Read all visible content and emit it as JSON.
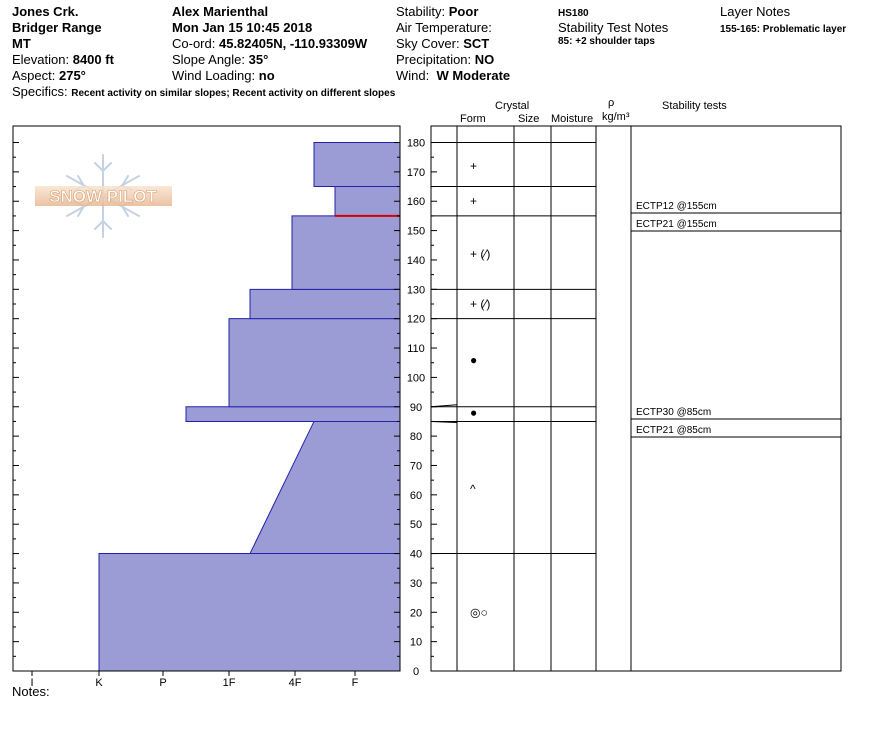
{
  "header": {
    "col1": {
      "location": "Jones Crk.",
      "range": "Bridger Range",
      "state": "MT",
      "elevation_label": "Elevation:",
      "elevation": "8400 ft",
      "aspect_label": "Aspect:",
      "aspect": "275°",
      "specifics_label": "Specifics:",
      "specifics": "Recent activity on similar slopes; Recent activity on different slopes"
    },
    "col2": {
      "observer": "Alex Marienthal",
      "datetime": "Mon Jan 15 10:45 2018",
      "coord_label": "Co-ord:",
      "coord": "45.82405N, -110.93309W",
      "slope_label": "Slope Angle:",
      "slope": "35°",
      "wind_loading_label": "Wind Loading:",
      "wind_loading": "no"
    },
    "col3": {
      "stability_label": "Stability:",
      "stability": "Poor",
      "air_temp_label": "Air Temperature:",
      "sky_label": "Sky Cover:",
      "sky": "SCT",
      "precip_label": "Precipitation:",
      "precip": "NO",
      "wind_label": "Wind:",
      "wind": "W Moderate"
    },
    "col4": {
      "hs": "HS180",
      "stability_notes_title": "Stability Test Notes",
      "stability_notes": "85: +2 shoulder taps"
    },
    "col5": {
      "layer_notes_title": "Layer Notes",
      "layer_notes": "155-165: Problematic layer"
    }
  },
  "logo_text": "SNOW PILOT",
  "notes_label": "Notes:",
  "table_headers": {
    "crystal": "Crystal",
    "form": "Form",
    "size": "Size",
    "moisture": "Moisture",
    "rho": "ρ",
    "density_unit": "kg/m³",
    "stability_tests": "Stability tests"
  },
  "colors": {
    "hardness_fill": "#9b9bd6",
    "hardness_stroke": "#2222aa",
    "weak_layer": "#d40000"
  },
  "chart_data": {
    "type": "area",
    "title": "",
    "ylabel": "",
    "ylim": [
      0,
      185
    ],
    "y_ticks": [
      0,
      10,
      20,
      30,
      40,
      50,
      60,
      70,
      80,
      90,
      100,
      110,
      120,
      130,
      140,
      150,
      160,
      170,
      180
    ],
    "hardness_scale": [
      "I",
      "K",
      "P",
      "1F",
      "4F",
      "F"
    ],
    "hardness_profile": [
      {
        "bottom": 0,
        "top": 40,
        "from": "K",
        "to": "K"
      },
      {
        "bottom": 40,
        "top": 85,
        "from": "1F+",
        "to": "4F+"
      },
      {
        "bottom": 85,
        "top": 90,
        "from": "P+",
        "to": "P+"
      },
      {
        "bottom": 90,
        "top": 120,
        "from": "1F",
        "to": "1F"
      },
      {
        "bottom": 120,
        "top": 130,
        "from": "1F+",
        "to": "1F+"
      },
      {
        "bottom": 130,
        "top": 155,
        "from": "4F",
        "to": "4F"
      },
      {
        "bottom": 155,
        "top": 165,
        "from": "4F-F",
        "to": "4F-F"
      },
      {
        "bottom": 165,
        "top": 180,
        "from": "4F+",
        "to": "4F+"
      }
    ],
    "weak_layer_height": 155,
    "layer_boundaries": [
      180,
      165,
      155,
      130,
      120,
      90,
      85,
      40,
      0
    ],
    "crystal_forms": [
      {
        "height": 172,
        "symbol": "+"
      },
      {
        "height": 160,
        "symbol": "+"
      },
      {
        "height": 142,
        "symbol": "+ (⁄)"
      },
      {
        "height": 125,
        "symbol": "+ (⁄)"
      },
      {
        "height": 106,
        "symbol": "●"
      },
      {
        "height": 88,
        "symbol": "●"
      },
      {
        "height": 62,
        "symbol": "^"
      },
      {
        "height": 20,
        "symbol": "◎○"
      }
    ],
    "stability_tests": [
      {
        "label": "ECTP12 @155cm"
      },
      {
        "label": "ECTP21 @155cm"
      },
      {
        "label": "ECTP30 @85cm"
      },
      {
        "label": "ECTP21 @85cm"
      }
    ]
  }
}
